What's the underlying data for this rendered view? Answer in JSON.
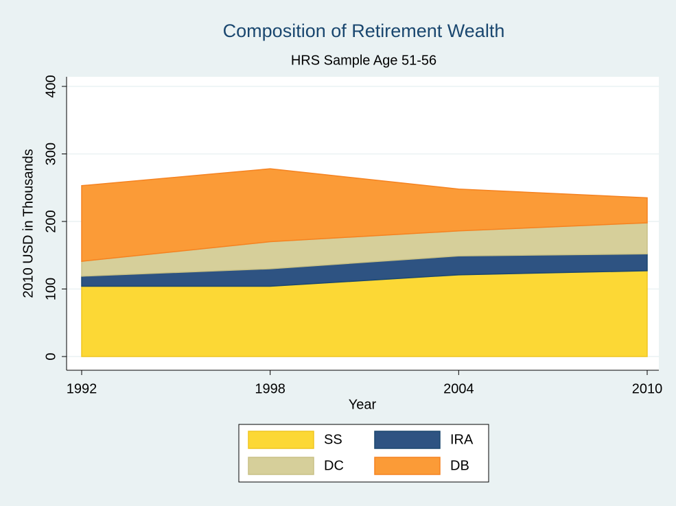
{
  "chart_data": {
    "type": "area",
    "stacked": true,
    "title": "Composition of Retirement Wealth",
    "subtitle": "HRS Sample Age 51-56",
    "x_label": "Year",
    "y_label": "2010 USD in Thousands",
    "x": [
      1992,
      1998,
      2004,
      2010
    ],
    "series": [
      {
        "name": "SS",
        "color": "#fcd835",
        "values": [
          104,
          104,
          121,
          127
        ]
      },
      {
        "name": "IRA",
        "color": "#2e5382",
        "values": [
          15,
          26,
          28,
          25
        ]
      },
      {
        "name": "DC",
        "color": "#d6cf9a",
        "values": [
          22,
          40,
          37,
          46
        ]
      },
      {
        "name": "DB",
        "color": "#fb9b37",
        "values": [
          112,
          108,
          62,
          37
        ]
      }
    ],
    "xlim": [
      1992,
      2010
    ],
    "xticks": [
      1992,
      1998,
      2004,
      2010
    ],
    "ylim": [
      0,
      400
    ],
    "yticks": [
      0,
      100,
      200,
      300,
      400
    ],
    "grid": true,
    "legend": "bottom"
  }
}
